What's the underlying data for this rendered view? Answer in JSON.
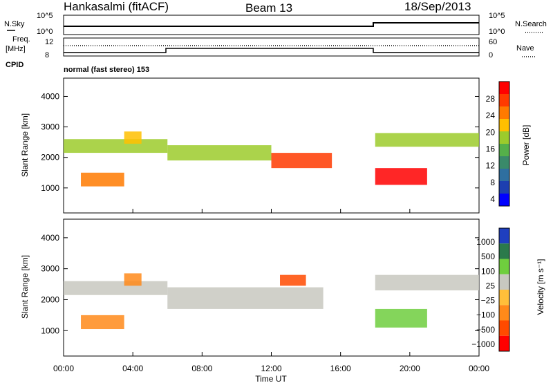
{
  "header": {
    "station": "Hankasalmi (fitACF)",
    "beam": "Beam 13",
    "date": "18/Sep/2013"
  },
  "top_panels": {
    "nsky_label": "N.Sky",
    "nsky_ticks": [
      "10^5",
      "10^0"
    ],
    "nsearch_label": "N.Search",
    "nsearch_ticks": [
      "10^5",
      "10^0"
    ],
    "freq_label_1": "Freq.",
    "freq_label_2": "[MHz]",
    "freq_ticks": [
      "12",
      "8"
    ],
    "nave_label": "Nave",
    "nave_ticks": [
      "60",
      "0"
    ],
    "cpid_label": "CPID",
    "cpid_value": "normal (fast stereo) 153"
  },
  "chart_data": [
    {
      "type": "heatmap",
      "name": "power",
      "ylabel": "Slant Range [km]",
      "ylim": [
        180,
        4600
      ],
      "yticks": [
        "4000",
        "3000",
        "2000",
        "1000"
      ],
      "colorbar_label": "Power [dB]",
      "colorbar_ticks": [
        "28",
        "24",
        "20",
        "16",
        "12",
        "8",
        "4"
      ],
      "colors": [
        "#0000ff",
        "#1d3fb0",
        "#2f6fa0",
        "#3a8a6a",
        "#55b04a",
        "#9ccb2c",
        "#ffbf00",
        "#ff7a00",
        "#ff3a00",
        "#ff0000"
      ],
      "bands": [
        {
          "t0": 0.0,
          "t1": 6.0,
          "r0": 2150,
          "r1": 2600,
          "level": 0.55
        },
        {
          "t0": 6.0,
          "t1": 12.0,
          "r0": 1900,
          "r1": 2400,
          "level": 0.6
        },
        {
          "t0": 12.0,
          "t1": 15.5,
          "r0": 1650,
          "r1": 2150,
          "level": 0.85
        },
        {
          "t0": 18.0,
          "t1": 24.0,
          "r0": 2350,
          "r1": 2800,
          "level": 0.5
        },
        {
          "t0": 1.0,
          "t1": 3.5,
          "r0": 1050,
          "r1": 1500,
          "level": 0.8
        },
        {
          "t0": 3.5,
          "t1": 4.5,
          "r0": 2450,
          "r1": 2850,
          "level": 0.7
        },
        {
          "t0": 18.0,
          "t1": 21.0,
          "r0": 1100,
          "r1": 1650,
          "level": 0.95
        }
      ]
    },
    {
      "type": "heatmap",
      "name": "velocity",
      "ylabel": "Slant Range [km]",
      "xlabel": "Time UT",
      "ylim": [
        180,
        4600
      ],
      "yticks": [
        "4000",
        "3000",
        "2000",
        "1000"
      ],
      "xticks": [
        "00:00",
        "04:00",
        "08:00",
        "12:00",
        "16:00",
        "20:00",
        "00:00"
      ],
      "colorbar_label": "Velocity [m s⁻¹]",
      "colorbar_ticks": [
        "1000",
        "500",
        "100",
        "25",
        "−25",
        "−100",
        "−500",
        "−1000"
      ],
      "colors": [
        "#1f3fbf",
        "#2b7a4b",
        "#6fce3e",
        "#c8c8c0",
        "#ffbf3a",
        "#ff8a1a",
        "#ff4a00",
        "#ff0000"
      ],
      "bands": [
        {
          "t0": 0.0,
          "t1": 6.0,
          "r0": 2150,
          "r1": 2600,
          "class": "gray"
        },
        {
          "t0": 6.0,
          "t1": 15.0,
          "r0": 1700,
          "r1": 2400,
          "class": "gray"
        },
        {
          "t0": 18.0,
          "t1": 24.0,
          "r0": 2300,
          "r1": 2800,
          "class": "gray"
        },
        {
          "t0": 1.0,
          "t1": 3.5,
          "r0": 1050,
          "r1": 1500,
          "class": "neg100"
        },
        {
          "t0": 3.5,
          "t1": 4.5,
          "r0": 2450,
          "r1": 2850,
          "class": "neg100"
        },
        {
          "t0": 12.5,
          "t1": 14.0,
          "r0": 2450,
          "r1": 2800,
          "class": "neg500"
        },
        {
          "t0": 18.0,
          "t1": 21.0,
          "r0": 1100,
          "r1": 1700,
          "class": "pos100"
        }
      ]
    }
  ]
}
